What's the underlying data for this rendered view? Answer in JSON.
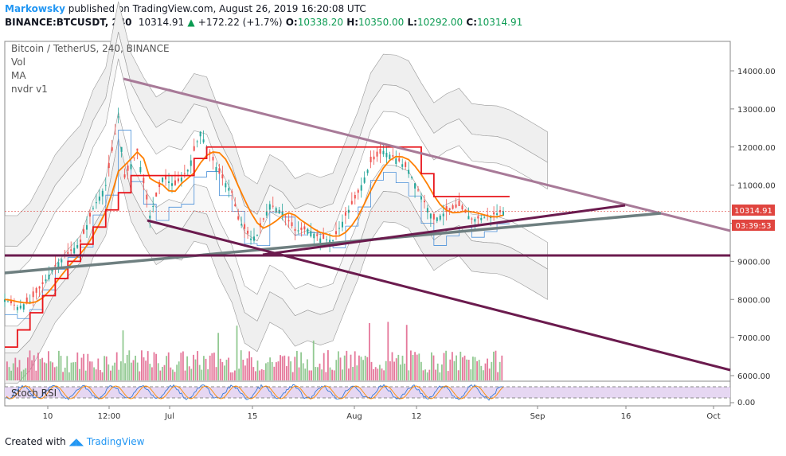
{
  "header": {
    "author": "Markowsky",
    "published_text": "published on TradingView.com, August 26, 2019 16:20:08 UTC",
    "symbol_line": "BINANCE:BTCUSDT, 240",
    "last": "10314.91",
    "change": "+172.22 (+1.7%)",
    "open_label": "O:",
    "open": "10338.20",
    "high_label": "H:",
    "high": "10350.00",
    "low_label": "L:",
    "low": "10292.00",
    "close_label": "C:",
    "close": "10314.91"
  },
  "legend": {
    "title": "Bitcoin / TetherUS, 240, BINANCE",
    "items": [
      "Vol",
      "MA",
      "nvdr v1"
    ]
  },
  "price_badge": {
    "value": "10314.91",
    "countdown": "03:39:53"
  },
  "oscillator_label": "Stoch RSI",
  "footer": {
    "created_with": "Created with",
    "brand": "TradingView"
  },
  "colors": {
    "up": "#26a69a",
    "down": "#ef5350",
    "ma": "#ff7f00",
    "step_red": "#e8141a",
    "trend_purple": "#6b1b4e",
    "trend_pink": "#a87a98",
    "trend_grey": "#6e7f80",
    "band_blue": "#4a90d9"
  },
  "chart_data": {
    "type": "line",
    "title": "Bitcoin / TetherUS, 240, BINANCE",
    "xlabel": "",
    "ylabel": "",
    "x": [
      "10",
      "12:00",
      "Jul",
      "15",
      "Aug",
      "12",
      "Sep",
      "16",
      "Oct"
    ],
    "ylim": [
      5800,
      14700
    ],
    "y_ticks": [
      "14000.00",
      "13000.00",
      "12000.00",
      "11000.00",
      "10000.00",
      "9000.00",
      "8000.00",
      "7000.00",
      "6000.00"
    ],
    "osc_ticks": [
      "0.00"
    ],
    "series": [],
    "close_points": [
      [
        "Jun 8",
        8000
      ],
      [
        "Jun 10",
        7800
      ],
      [
        "Jun 12",
        7950
      ],
      [
        "Jun 14",
        8400
      ],
      [
        "Jun 16",
        8900
      ],
      [
        "Jun 18",
        9200
      ],
      [
        "Jun 20",
        9500
      ],
      [
        "Jun 22",
        10400
      ],
      [
        "Jun 24",
        11000
      ],
      [
        "Jun 26",
        12800
      ],
      [
        "Jun 27",
        11200
      ],
      [
        "Jun 29",
        11900
      ],
      [
        "Jul 1",
        10200
      ],
      [
        "Jul 3",
        11200
      ],
      [
        "Jul 5",
        11000
      ],
      [
        "Jul 7",
        11400
      ],
      [
        "Jul 9",
        12400
      ],
      [
        "Jul 10",
        12000
      ],
      [
        "Jul 12",
        11300
      ],
      [
        "Jul 14",
        10800
      ],
      [
        "Jul 15",
        10100
      ],
      [
        "Jul 17",
        9600
      ],
      [
        "Jul 18",
        9700
      ],
      [
        "Jul 20",
        10500
      ],
      [
        "Jul 22",
        10300
      ],
      [
        "Jul 24",
        9800
      ],
      [
        "Jul 26",
        9850
      ],
      [
        "Jul 28",
        9600
      ],
      [
        "Jul 30",
        9550
      ],
      [
        "Aug 1",
        10200
      ],
      [
        "Aug 3",
        10800
      ],
      [
        "Aug 5",
        11600
      ],
      [
        "Aug 7",
        11900
      ],
      [
        "Aug 9",
        11700
      ],
      [
        "Aug 11",
        11400
      ],
      [
        "Aug 13",
        10700
      ],
      [
        "Aug 15",
        10100
      ],
      [
        "Aug 17",
        10300
      ],
      [
        "Aug 19",
        10450
      ],
      [
        "Aug 21",
        10100
      ],
      [
        "Aug 23",
        10150
      ],
      [
        "Aug 26",
        10314.91
      ]
    ]
  }
}
